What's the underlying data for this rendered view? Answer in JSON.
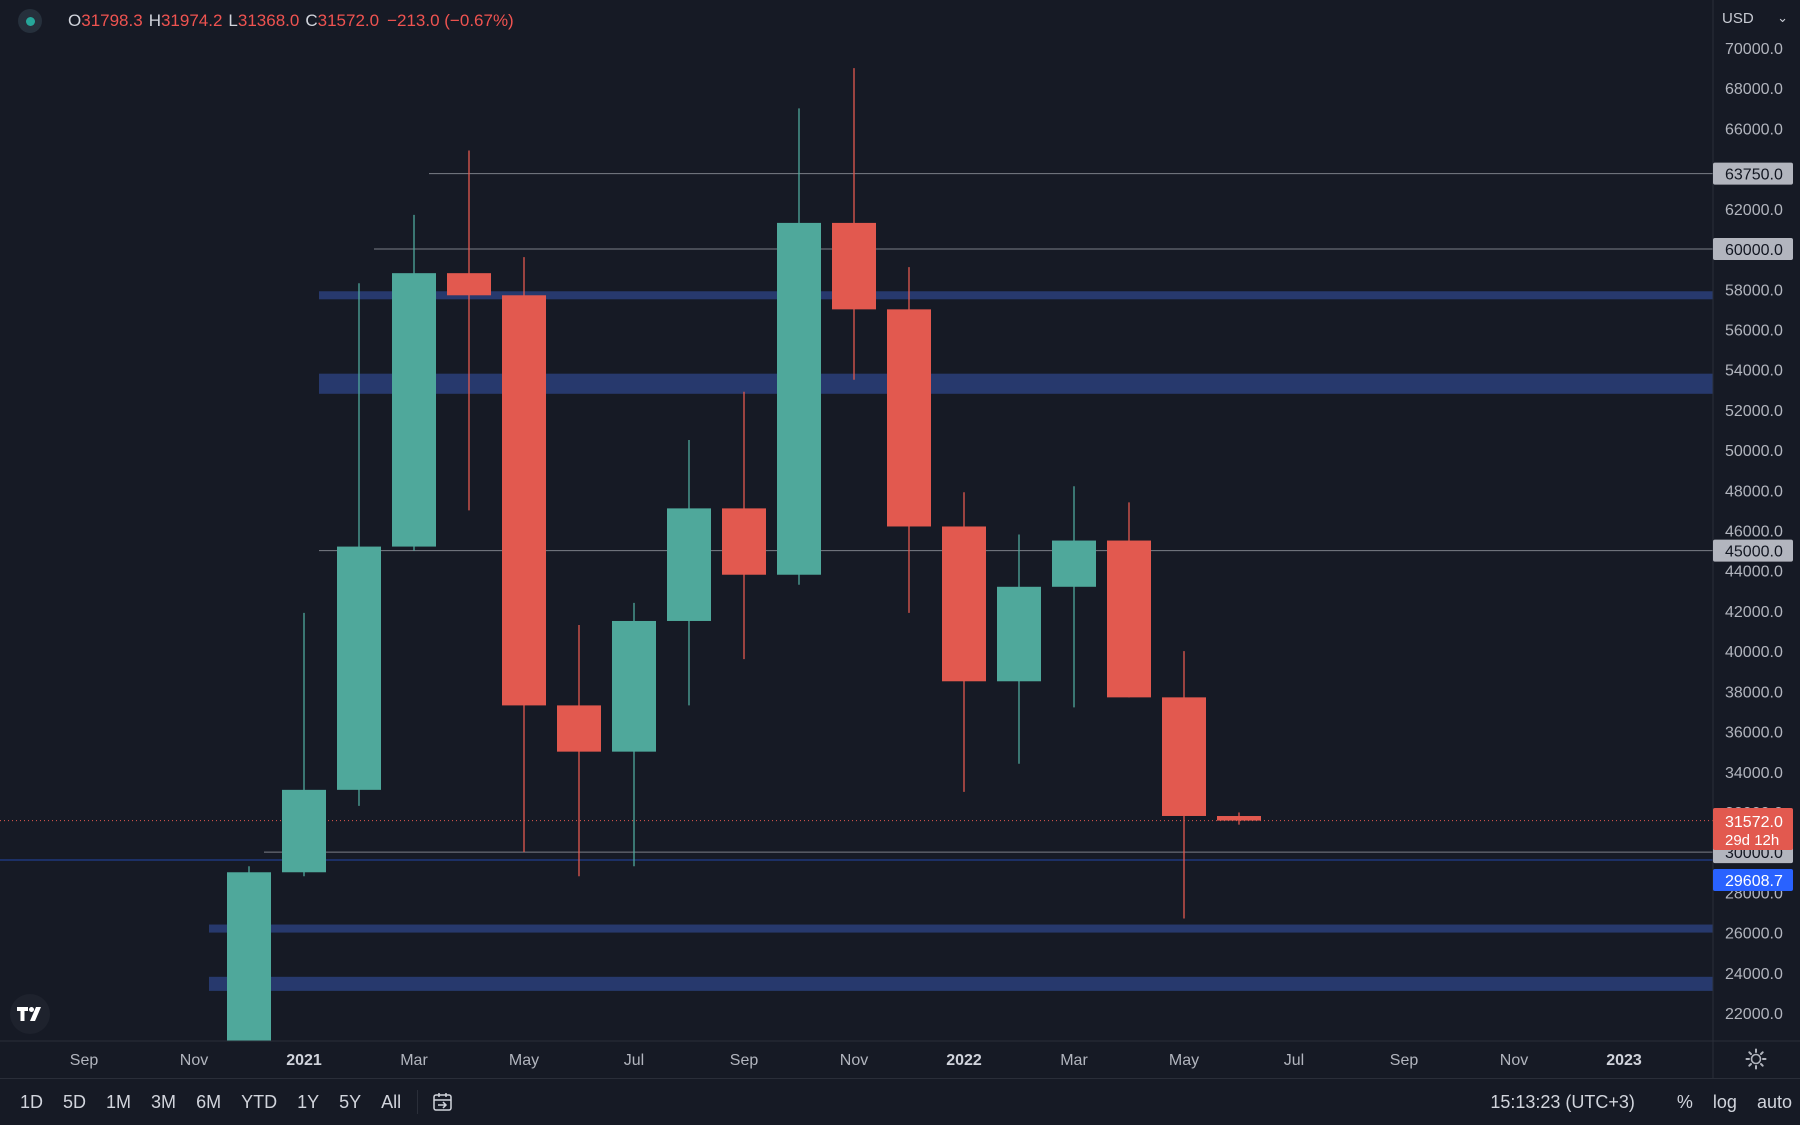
{
  "legend": {
    "open_label": "O",
    "open": "31798.3",
    "high_label": "H",
    "high": "31974.2",
    "low_label": "L",
    "low": "31368.0",
    "close_label": "C",
    "close": "31572.0",
    "change": "−213.0 (−0.67%)"
  },
  "currency": {
    "label": "USD"
  },
  "toolbar": {
    "timeframes": [
      "1D",
      "5D",
      "1M",
      "3M",
      "6M",
      "YTD",
      "1Y",
      "5Y",
      "All"
    ],
    "clock": "15:13:23 (UTC+3)",
    "percent_label": "%",
    "log_label": "log",
    "auto_label": "auto"
  },
  "colors": {
    "background": "#161a25",
    "up": "#4fa89b",
    "down": "#e2594f",
    "zone": "#2a3f7a",
    "line": "#787b86",
    "axis_text": "#b2b5be"
  },
  "chart_data": {
    "type": "candlestick",
    "interval": "1M",
    "x_ticks": [
      "Sep",
      "Nov",
      "2021",
      "Mar",
      "May",
      "Jul",
      "Sep",
      "Nov",
      "2022",
      "Mar",
      "May",
      "Jul",
      "Sep",
      "Nov",
      "2023"
    ],
    "y_ticks": [
      22000,
      24000,
      26000,
      28000,
      30000,
      32000,
      34000,
      36000,
      38000,
      40000,
      42000,
      44000,
      46000,
      48000,
      50000,
      52000,
      54000,
      56000,
      58000,
      60000,
      62000,
      64000,
      66000,
      68000,
      70000
    ],
    "y_tick_labels": [
      "22000.0",
      "24000.0",
      "26000.0",
      "28000.0",
      "30000.0",
      "32000.0",
      "34000.0",
      "36000.0",
      "38000.0",
      "40000.0",
      "42000.0",
      "44000.0",
      "46000.0",
      "48000.0",
      "50000.0",
      "52000.0",
      "54000.0",
      "56000.0",
      "58000.0",
      "60000.0",
      "62000.0",
      "64000.0",
      "66000.0",
      "68000.0",
      "70000.0"
    ],
    "ylim": [
      21000,
      71000
    ],
    "candles": [
      {
        "month": "2020-12",
        "open": 19700,
        "high": 29300,
        "low": 17600,
        "close": 29000
      },
      {
        "month": "2021-01",
        "open": 29000,
        "high": 41900,
        "low": 28800,
        "close": 33100
      },
      {
        "month": "2021-02",
        "open": 33100,
        "high": 58300,
        "low": 32300,
        "close": 45200
      },
      {
        "month": "2021-03",
        "open": 45200,
        "high": 61700,
        "low": 45000,
        "close": 58800
      },
      {
        "month": "2021-04",
        "open": 58800,
        "high": 64900,
        "low": 47000,
        "close": 57700
      },
      {
        "month": "2021-05",
        "open": 57700,
        "high": 59600,
        "low": 30000,
        "close": 37300
      },
      {
        "month": "2021-06",
        "open": 37300,
        "high": 41300,
        "low": 28800,
        "close": 35000
      },
      {
        "month": "2021-07",
        "open": 35000,
        "high": 42400,
        "low": 29300,
        "close": 41500
      },
      {
        "month": "2021-08",
        "open": 41500,
        "high": 50500,
        "low": 37300,
        "close": 47100
      },
      {
        "month": "2021-09",
        "open": 47100,
        "high": 52900,
        "low": 39600,
        "close": 43800
      },
      {
        "month": "2021-10",
        "open": 43800,
        "high": 66999,
        "low": 43300,
        "close": 61300
      },
      {
        "month": "2021-11",
        "open": 61300,
        "high": 69000,
        "low": 53500,
        "close": 57000
      },
      {
        "month": "2021-12",
        "open": 57000,
        "high": 59100,
        "low": 41900,
        "close": 46200
      },
      {
        "month": "2022-01",
        "open": 46200,
        "high": 47900,
        "low": 33000,
        "close": 38500
      },
      {
        "month": "2022-02",
        "open": 38500,
        "high": 45800,
        "low": 34400,
        "close": 43200
      },
      {
        "month": "2022-03",
        "open": 43200,
        "high": 48200,
        "low": 37200,
        "close": 45500
      },
      {
        "month": "2022-04",
        "open": 45500,
        "high": 47400,
        "low": 37700,
        "close": 37700
      },
      {
        "month": "2022-05",
        "open": 37700,
        "high": 40000,
        "low": 26700,
        "close": 31800
      },
      {
        "month": "2022-06",
        "open": 31798.3,
        "high": 31974.2,
        "low": 31368.0,
        "close": 31572.0
      }
    ],
    "horizontal_lines": [
      {
        "price": 63750,
        "label": "63750.0",
        "start_month": "2021-04"
      },
      {
        "price": 60000,
        "label": "60000.0",
        "start_month": "2021-03"
      },
      {
        "price": 45000,
        "label": "45000.0",
        "start_month": "2021-02"
      },
      {
        "price": 30000,
        "label": "30000.0",
        "start_month": "2021-01"
      }
    ],
    "zones": [
      {
        "low": 57500,
        "high": 57900,
        "start_month": "2021-02"
      },
      {
        "low": 52800,
        "high": 53800,
        "start_month": "2021-02"
      },
      {
        "low": 26000,
        "high": 26400,
        "start_month": "2020-12"
      },
      {
        "low": 23100,
        "high": 23800,
        "start_month": "2020-12"
      }
    ],
    "last_price": {
      "value": 31572.0,
      "label": "31572.0",
      "countdown": "29d 12h"
    },
    "blue_line": {
      "value": 29608.7,
      "label": "29608.7"
    },
    "grid": false
  }
}
